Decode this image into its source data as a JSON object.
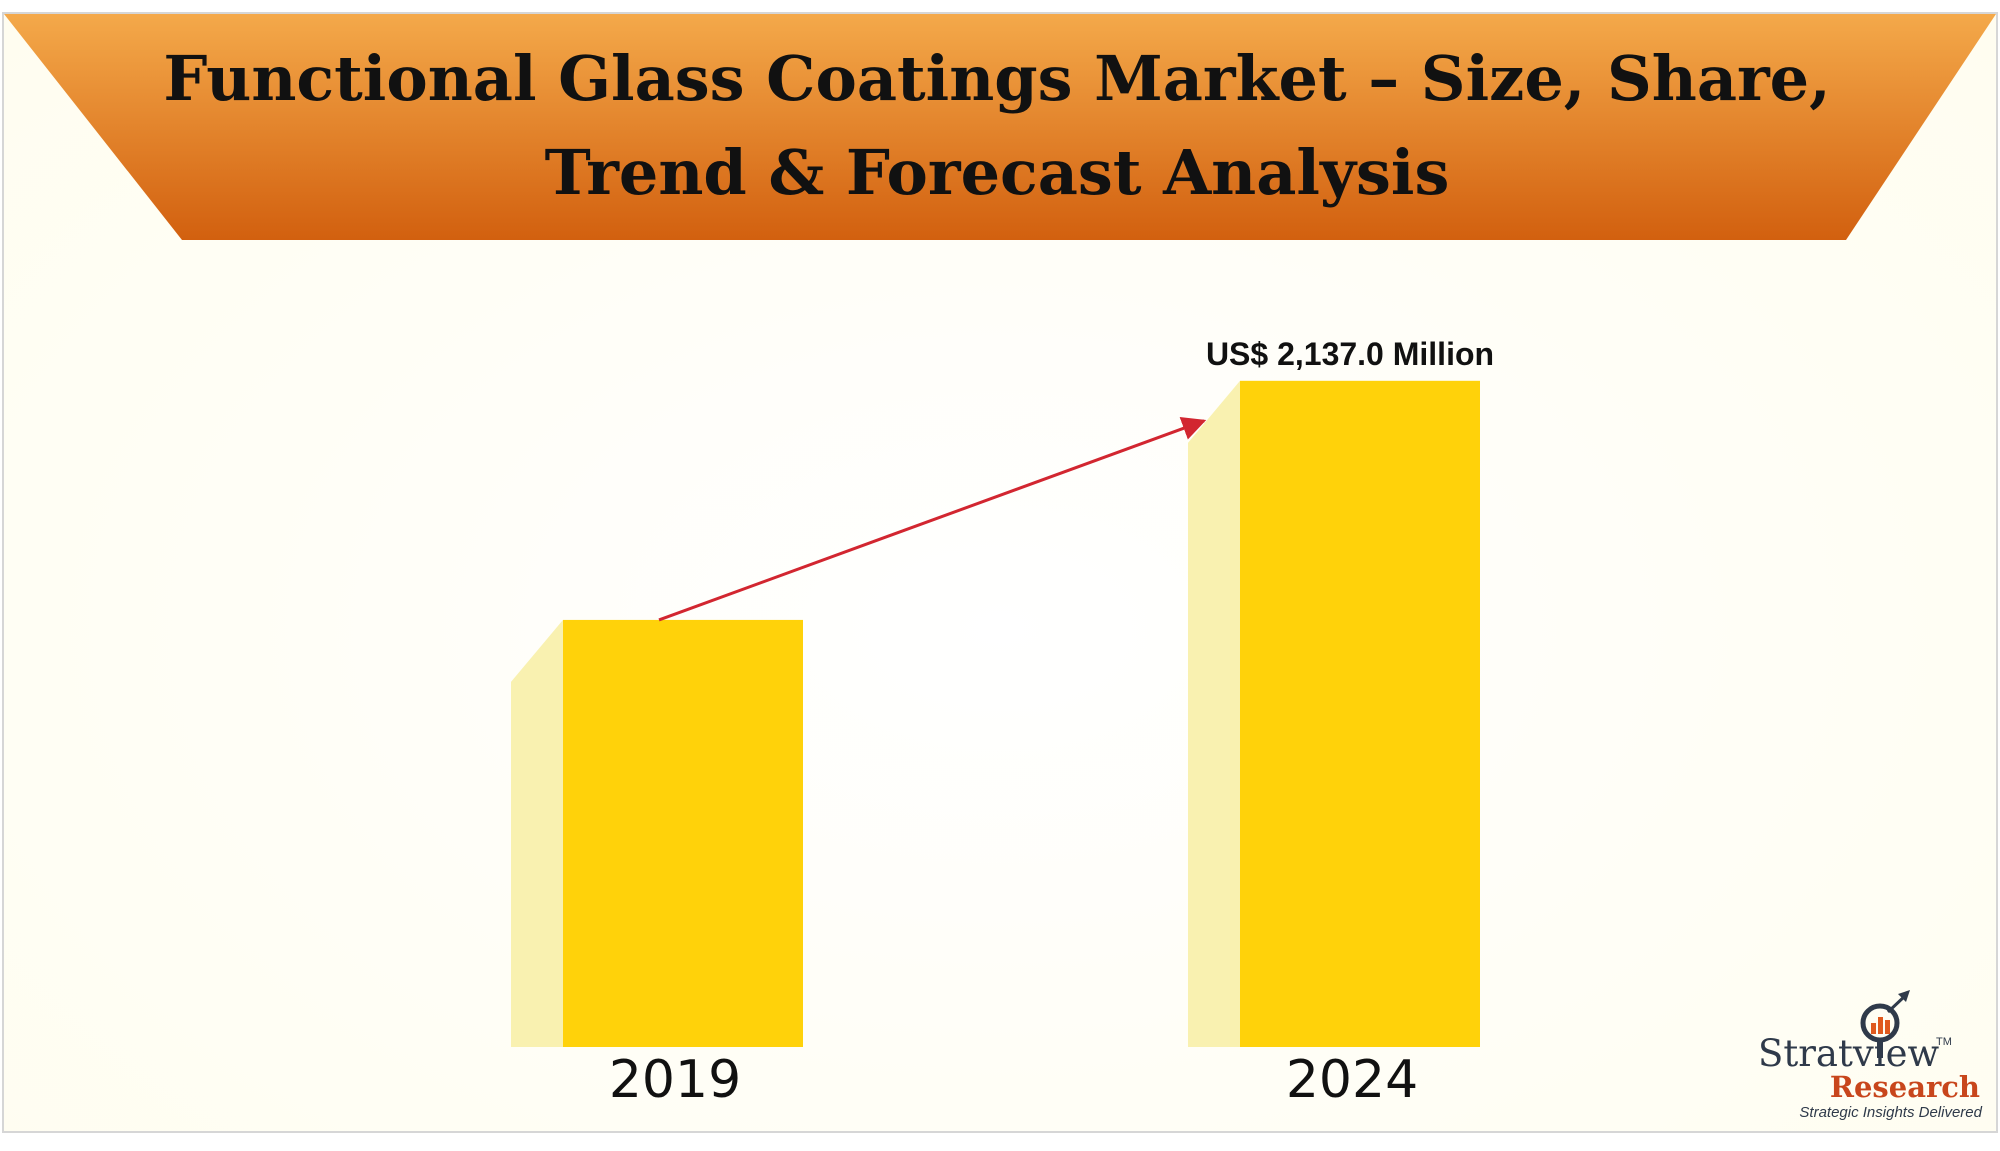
{
  "title": {
    "line1": "Functional Glass Coatings Market – Size, Share,",
    "line2": "Trend & Forecast Analysis"
  },
  "colors": {
    "banner_top": "#f4a94a",
    "banner_bottom": "#d2600f",
    "bar_front": "#ffd20a",
    "bar_side": "#f9f1b0",
    "arrow": "#d22630",
    "brand_red": "#c8461c"
  },
  "chart_data": {
    "type": "bar",
    "categories": [
      "2019",
      "2024"
    ],
    "values": [
      1370,
      2137.0
    ],
    "unit": "US$ Million",
    "data_labels": [
      "",
      "US$ 2,137.0 Million"
    ],
    "ylim": [
      0,
      2300
    ],
    "grid": false,
    "legend": "none",
    "annotation": "growth-arrow"
  },
  "logo": {
    "name": "Stratview",
    "trademark": "TM",
    "sub": "Research",
    "tagline": "Strategic Insights Delivered",
    "icon": "magnifier-growth-icon"
  }
}
